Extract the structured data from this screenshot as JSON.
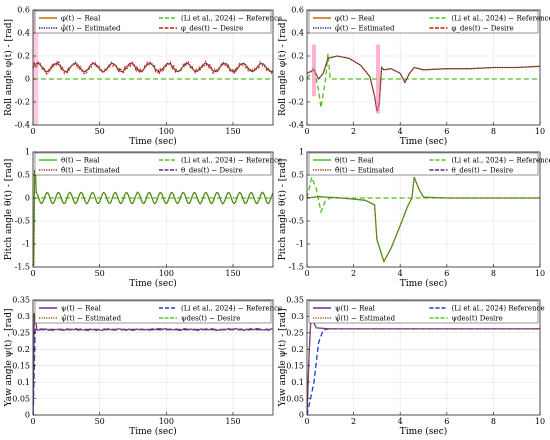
{
  "figure": {
    "colors": {
      "real_phi_theta": "#c06a10",
      "real_psi": "#6a2aa8",
      "real_theta": "#40c020",
      "estimated": "#1a1aa0",
      "reference": "#50c020",
      "reference_psi": "#1a3ad0",
      "desire": "#cc1a1a",
      "desire_theta": "#5a2a9a",
      "desire_psi": "#60c030",
      "estimated_theta": "#a03010",
      "estimated_psi": "#a06010",
      "spike": "#ff66aa"
    }
  },
  "chart_data": [
    {
      "type": "line",
      "id": "roll-long",
      "xlabel": "Time (sec)",
      "ylabel": "Roll angle φ(t) - [rad]",
      "xlim": [
        0,
        180
      ],
      "ylim": [
        -0.4,
        0.6
      ],
      "xticks": [
        0,
        50,
        100,
        150
      ],
      "yticks": [
        -0.4,
        -0.2,
        0,
        0.2,
        0.4,
        0.6
      ],
      "grid": true,
      "legend": [
        "φ(t) − Real",
        "(Li et al., 2024) − Reference",
        "φ̂(t) − Estimated",
        "φ_des(t) − Desire"
      ],
      "signals": {
        "reference_value": 0,
        "oscillation": {
          "mean": 0.1,
          "amplitude": 0.035,
          "period_sec": 14
        }
      }
    },
    {
      "type": "line",
      "id": "roll-short",
      "xlabel": "Time (sec)",
      "ylabel": "Roll angle φ(t) - [rad]",
      "xlim": [
        0,
        10
      ],
      "ylim": [
        -0.4,
        0.6
      ],
      "xticks": [
        0,
        2,
        4,
        6,
        8,
        10
      ],
      "yticks": [
        -0.4,
        -0.2,
        0,
        0.2,
        0.4,
        0.6
      ],
      "grid": true,
      "legend": [
        "φ(t) − Real",
        "(Li et al., 2024) − Reference",
        "φ̂(t) − Estimated",
        "φ_des(t) − Desire"
      ],
      "series_points": {
        "real": [
          [
            0,
            0.05
          ],
          [
            0.3,
            0.08
          ],
          [
            0.5,
            0.0
          ],
          [
            0.7,
            0.05
          ],
          [
            0.9,
            0.18
          ],
          [
            1.3,
            0.2
          ],
          [
            1.8,
            0.18
          ],
          [
            2.3,
            0.12
          ],
          [
            2.7,
            0.02
          ],
          [
            2.9,
            -0.15
          ],
          [
            3.0,
            -0.28
          ],
          [
            3.1,
            -0.22
          ],
          [
            3.2,
            0.1
          ],
          [
            3.3,
            0.08
          ],
          [
            3.6,
            0.09
          ],
          [
            4.0,
            0.05
          ],
          [
            4.2,
            -0.03
          ],
          [
            4.4,
            0.05
          ],
          [
            4.6,
            0.1
          ],
          [
            5.0,
            0.08
          ],
          [
            6,
            0.09
          ],
          [
            7,
            0.09
          ],
          [
            8,
            0.1
          ],
          [
            9,
            0.1
          ],
          [
            10,
            0.11
          ]
        ],
        "reference": [
          [
            0,
            0.0
          ],
          [
            0.3,
            0.1
          ],
          [
            0.5,
            -0.1
          ],
          [
            0.6,
            -0.25
          ],
          [
            0.8,
            0.0
          ],
          [
            0.9,
            0.22
          ],
          [
            1.0,
            0.0
          ],
          [
            1.4,
            0.0
          ],
          [
            10,
            0.0
          ]
        ]
      }
    },
    {
      "type": "line",
      "id": "pitch-long",
      "xlabel": "Time (sec)",
      "ylabel": "Pitch angle θ(t) - [rad]",
      "xlim": [
        0,
        180
      ],
      "ylim": [
        -1.5,
        1
      ],
      "xticks": [
        0,
        50,
        100,
        150
      ],
      "yticks": [
        -1.5,
        -1,
        -0.5,
        0,
        0.5,
        1
      ],
      "grid": true,
      "legend": [
        "θ(t) − Real",
        "(Li et al., 2024) − Reference",
        "θ̂(t) − Estimated",
        "θ_des(t) − Desire"
      ],
      "signals": {
        "reference_value": 0,
        "oscillation": {
          "mean": 0.0,
          "amplitude": 0.12,
          "period_sec": 8.5
        },
        "initial_spike": [
          -1.45,
          0.6
        ]
      }
    },
    {
      "type": "line",
      "id": "pitch-short",
      "xlabel": "Time (sec)",
      "ylabel": "Pitch angle θ(t) - [rad]",
      "xlim": [
        0,
        10
      ],
      "ylim": [
        -1.5,
        1
      ],
      "xticks": [
        0,
        2,
        4,
        6,
        8,
        10
      ],
      "yticks": [
        -1.5,
        -1,
        -0.5,
        0,
        0.5,
        1
      ],
      "grid": true,
      "legend": [
        "θ(t) − Real",
        "(Li et al., 2024) − Reference",
        "θ̂(t) − Estimated",
        "θ_des(t) − Desire"
      ],
      "series_points": {
        "real": [
          [
            0,
            0.0
          ],
          [
            0.5,
            0.03
          ],
          [
            1.5,
            0.0
          ],
          [
            2.5,
            -0.05
          ],
          [
            2.9,
            -0.15
          ],
          [
            3.0,
            -0.9
          ],
          [
            3.3,
            -1.38
          ],
          [
            3.6,
            -1.1
          ],
          [
            4.0,
            -0.6
          ],
          [
            4.3,
            -0.2
          ],
          [
            4.5,
            0.0
          ],
          [
            4.6,
            0.45
          ],
          [
            4.8,
            0.2
          ],
          [
            5.0,
            0.02
          ],
          [
            6,
            0.0
          ],
          [
            10,
            0.0
          ]
        ],
        "reference": [
          [
            0,
            0.0
          ],
          [
            0.2,
            0.45
          ],
          [
            0.4,
            0.2
          ],
          [
            0.6,
            -0.3
          ],
          [
            0.8,
            -0.05
          ],
          [
            1.0,
            0.0
          ],
          [
            10,
            0.0
          ]
        ]
      }
    },
    {
      "type": "line",
      "id": "yaw-long",
      "xlabel": "Time (sec)",
      "ylabel": "Yaw angle ψ(t) - [rad]",
      "xlim": [
        0,
        180
      ],
      "ylim": [
        0,
        0.35
      ],
      "xticks": [
        0,
        50,
        100,
        150
      ],
      "yticks": [
        0,
        0.05,
        0.1,
        0.15,
        0.2,
        0.25,
        0.3,
        0.35
      ],
      "grid": true,
      "legend": [
        "ψ(t) − Real",
        "(Li et al., 2024) − Reference",
        "ψ̂(t) − Estimated",
        "ψdes(t) − Desire"
      ],
      "signals": {
        "steady_value": 0.26
      }
    },
    {
      "type": "line",
      "id": "yaw-short",
      "xlabel": "Time (sec)",
      "ylabel": "Yaw angle ψ(t) - [rad]",
      "xlim": [
        0,
        10
      ],
      "ylim": [
        0,
        0.35
      ],
      "xticks": [
        0,
        2,
        4,
        6,
        8,
        10
      ],
      "yticks": [
        0,
        0.05,
        0.1,
        0.15,
        0.2,
        0.25,
        0.3,
        0.35
      ],
      "grid": true,
      "legend": [
        "ψ(t) − Real",
        "(Li et al., 2024) Reference",
        "ψ̂(t) − Estimated",
        "ψdes(t) Desire"
      ],
      "series_points": {
        "real": [
          [
            0,
            0.0
          ],
          [
            0.1,
            0.2
          ],
          [
            0.2,
            0.34
          ],
          [
            0.3,
            0.28
          ],
          [
            0.4,
            0.265
          ],
          [
            1.0,
            0.262
          ],
          [
            10,
            0.262
          ]
        ],
        "reference": [
          [
            0,
            0.0
          ],
          [
            0.3,
            0.1
          ],
          [
            0.5,
            0.22
          ],
          [
            0.7,
            0.26
          ],
          [
            1.0,
            0.262
          ],
          [
            10,
            0.262
          ]
        ]
      }
    }
  ]
}
